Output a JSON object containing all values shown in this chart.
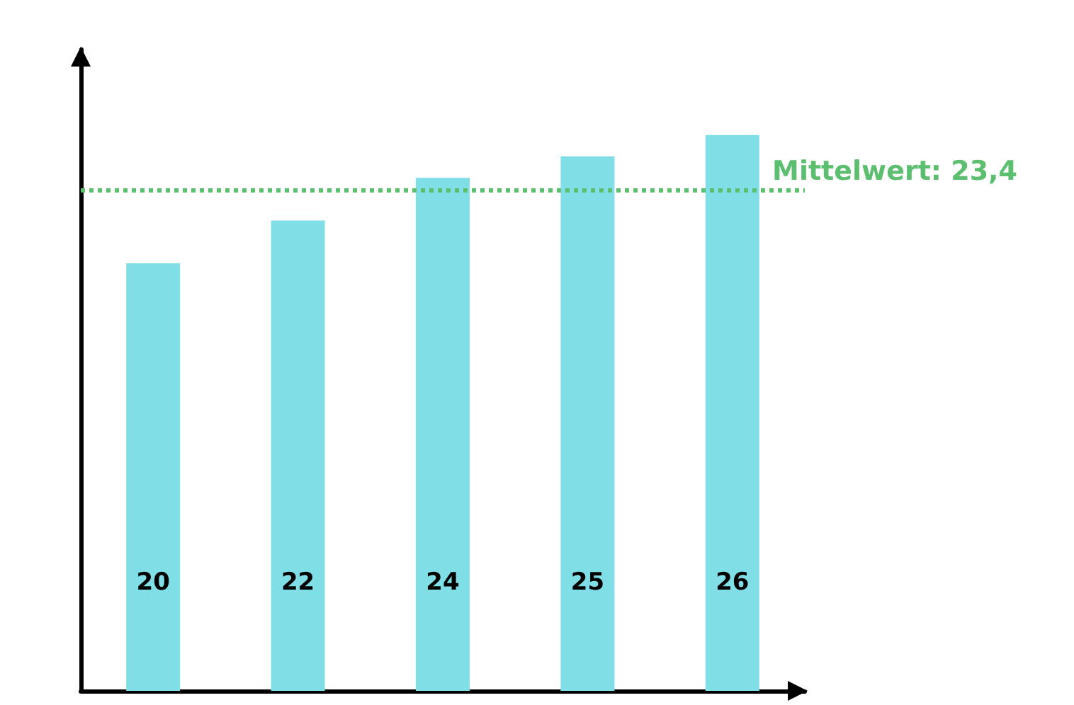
{
  "chart_data": {
    "type": "bar",
    "categories": [
      null,
      null,
      null,
      null,
      null
    ],
    "values": [
      20,
      22,
      24,
      25,
      26
    ],
    "color": "#80dfe6",
    "data_labels": true,
    "tick_labels": false,
    "grid": false,
    "ref_lines": [
      {
        "axis": "y",
        "value": 23.4,
        "label": "Mittelwert: 23,4",
        "color": "#5cbf6f",
        "line_style": "dotted"
      }
    ]
  }
}
